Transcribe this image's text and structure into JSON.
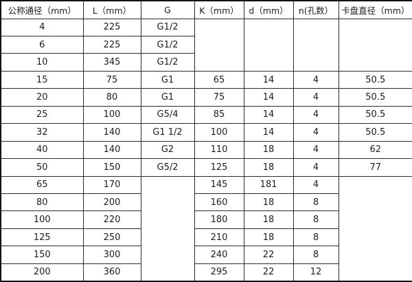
{
  "colors": {
    "border_inner": "#2b2b2b",
    "border_outer": "#111111",
    "text": "#1c1c1c",
    "background": "#ffffff"
  },
  "table": {
    "headers": [
      {
        "id": "nominal-diameter",
        "label": "公称通径（mm）"
      },
      {
        "id": "length-l",
        "label": "L（mm）"
      },
      {
        "id": "thread-g",
        "label": "G"
      },
      {
        "id": "k-dim",
        "label": "K（mm）"
      },
      {
        "id": "d-dim",
        "label": "d（mm）"
      },
      {
        "id": "n-holes",
        "label": "n(孔数）"
      },
      {
        "id": "chuck-diameter",
        "label": "卡盘直径（mm）"
      }
    ],
    "rows": [
      [
        {
          "t": "4"
        },
        {
          "t": "225"
        },
        {
          "t": "G1/2"
        },
        {
          "t": "",
          "rs": 3
        },
        {
          "t": "",
          "rs": 3
        },
        {
          "t": "",
          "rs": 3
        },
        {
          "t": "",
          "rs": 3
        }
      ],
      [
        {
          "t": "6"
        },
        {
          "t": "225"
        },
        {
          "t": "G1/2"
        }
      ],
      [
        {
          "t": "10"
        },
        {
          "t": "345"
        },
        {
          "t": "G1/2"
        }
      ],
      [
        {
          "t": "15"
        },
        {
          "t": "75"
        },
        {
          "t": "G1"
        },
        {
          "t": "65"
        },
        {
          "t": "14"
        },
        {
          "t": "4"
        },
        {
          "t": "50.5"
        }
      ],
      [
        {
          "t": "20"
        },
        {
          "t": "80"
        },
        {
          "t": "G1"
        },
        {
          "t": "75"
        },
        {
          "t": "14"
        },
        {
          "t": "4"
        },
        {
          "t": "50.5"
        }
      ],
      [
        {
          "t": "25"
        },
        {
          "t": "100"
        },
        {
          "t": "G5/4"
        },
        {
          "t": "85"
        },
        {
          "t": "14"
        },
        {
          "t": "4"
        },
        {
          "t": "50.5"
        }
      ],
      [
        {
          "t": "32"
        },
        {
          "t": "140"
        },
        {
          "t": "G1 1/2"
        },
        {
          "t": "100"
        },
        {
          "t": "14"
        },
        {
          "t": "4"
        },
        {
          "t": "50.5"
        }
      ],
      [
        {
          "t": "40"
        },
        {
          "t": "140"
        },
        {
          "t": "G2"
        },
        {
          "t": "110"
        },
        {
          "t": "18"
        },
        {
          "t": "4"
        },
        {
          "t": "62"
        }
      ],
      [
        {
          "t": "50"
        },
        {
          "t": "150"
        },
        {
          "t": "G5/2"
        },
        {
          "t": "125"
        },
        {
          "t": "18"
        },
        {
          "t": "4"
        },
        {
          "t": "77"
        }
      ],
      [
        {
          "t": "65"
        },
        {
          "t": "170"
        },
        {
          "t": "",
          "rs": 6
        },
        {
          "t": "145"
        },
        {
          "t": "181"
        },
        {
          "t": "4"
        },
        {
          "t": "",
          "rs": 6
        }
      ],
      [
        {
          "t": "80"
        },
        {
          "t": "200"
        },
        {
          "t": "160"
        },
        {
          "t": "18"
        },
        {
          "t": "8"
        }
      ],
      [
        {
          "t": "100"
        },
        {
          "t": "220"
        },
        {
          "t": "180"
        },
        {
          "t": "18"
        },
        {
          "t": "8"
        }
      ],
      [
        {
          "t": "125"
        },
        {
          "t": "250"
        },
        {
          "t": "210"
        },
        {
          "t": "18"
        },
        {
          "t": "8"
        }
      ],
      [
        {
          "t": "150"
        },
        {
          "t": "300"
        },
        {
          "t": "240"
        },
        {
          "t": "22"
        },
        {
          "t": "8"
        }
      ],
      [
        {
          "t": "200"
        },
        {
          "t": "360"
        },
        {
          "t": "295"
        },
        {
          "t": "22"
        },
        {
          "t": "12"
        }
      ]
    ]
  }
}
